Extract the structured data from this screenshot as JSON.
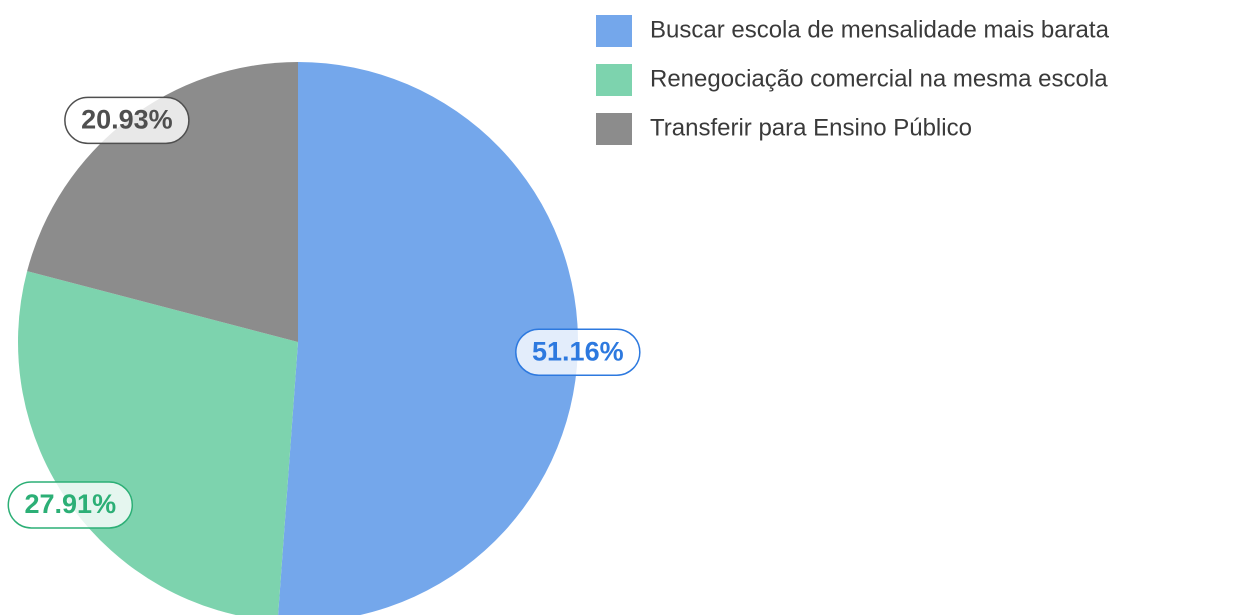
{
  "chart_data": {
    "type": "pie",
    "categories": [
      "Buscar escola de mensalidade mais barata",
      "Renegociação comercial na mesma escola",
      "Transferir para Ensino Público"
    ],
    "values": [
      51.16,
      27.91,
      20.93
    ],
    "value_labels": [
      "51.16%",
      "27.91%",
      "20.93%"
    ],
    "colors": [
      "#74a7eb",
      "#7dd3ae",
      "#8c8c8c"
    ],
    "label_colors": [
      "#2d79df",
      "#2caf76",
      "#4f4f4f"
    ],
    "legend": "top-right"
  }
}
